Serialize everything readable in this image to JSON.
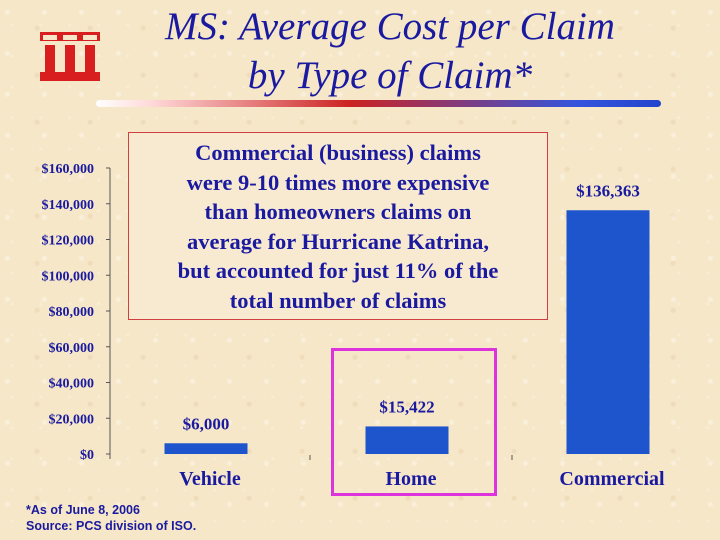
{
  "slide": {
    "title_line1": "MS: Average Cost per Claim",
    "title_line2": "by Type of Claim*",
    "logo": "III logo",
    "callout_lines": [
      "Commercial (business) claims",
      "were 9-10 times more expensive",
      "than homeowners claims on",
      "average for Hurricane Katrina,",
      "but accounted for just 11% of the",
      "total number of claims"
    ],
    "footnote_line1": "*As of June 8, 2006",
    "footnote_line2": "Source:  PCS division of ISO."
  },
  "colors": {
    "bar": "#1f55cc",
    "text": "#1a1aa0",
    "logo": "#d81e1e",
    "highlight": "#dd33dd",
    "callout_border": "#d04040"
  },
  "chart_data": {
    "type": "bar",
    "categories": [
      "Vehicle",
      "Home",
      "Commercial"
    ],
    "values": [
      6000,
      15422,
      136363
    ],
    "data_labels": [
      "$6,000",
      "$15,422",
      "$136,363"
    ],
    "ylim": [
      0,
      160000
    ],
    "yticks": [
      0,
      20000,
      40000,
      60000,
      80000,
      100000,
      120000,
      140000,
      160000
    ],
    "ytick_labels": [
      "$0",
      "$20,000",
      "$40,000",
      "$60,000",
      "$80,000",
      "$100,000",
      "$120,000",
      "$140,000",
      "$160,000"
    ],
    "highlighted_category": "Home",
    "grid": false,
    "legend": "none"
  }
}
